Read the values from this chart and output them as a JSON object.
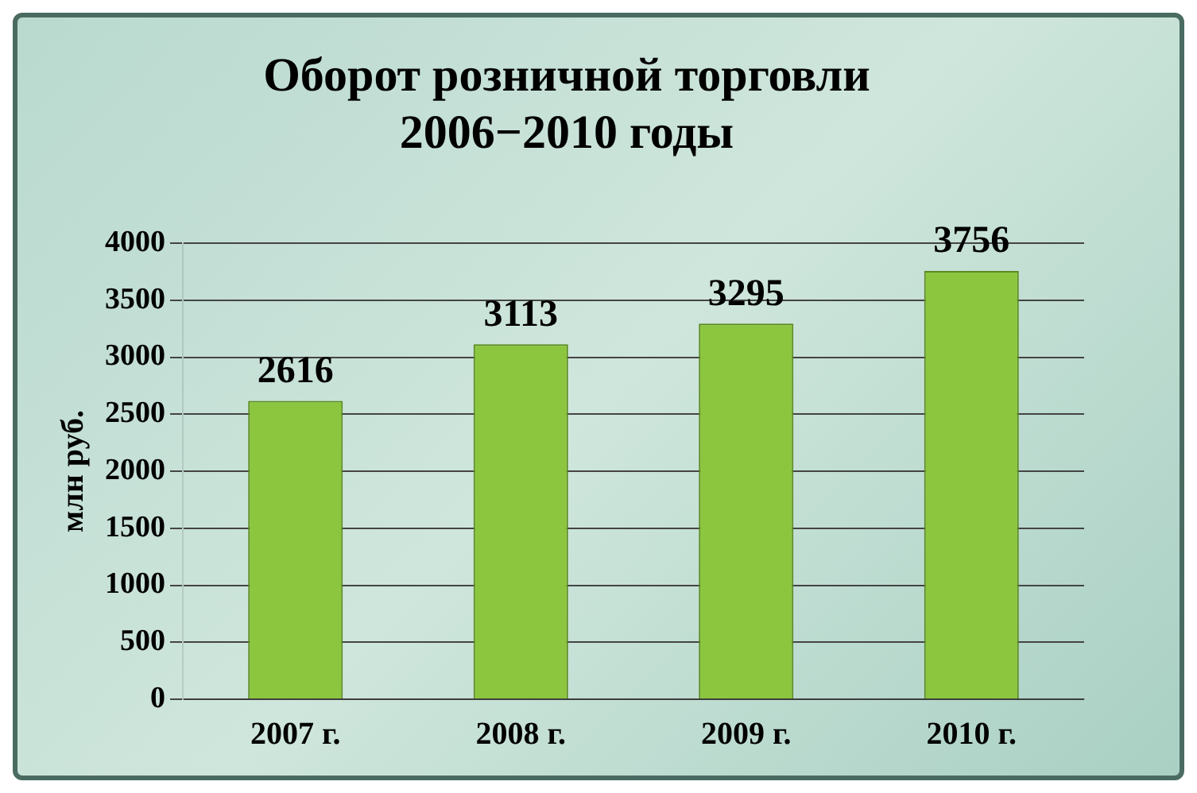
{
  "chart_data": {
    "type": "bar",
    "title": "Оборот розничной торговли\n2006−2010 годы",
    "ylabel": "млн руб.",
    "categories": [
      "2007 г.",
      "2008 г.",
      "2009 г.",
      "2010 г."
    ],
    "values": [
      2616,
      3113,
      3295,
      3756
    ],
    "color": "#8cc63f",
    "ylim": [
      0,
      4000
    ],
    "yticks": [
      0,
      500,
      1000,
      1500,
      2000,
      2500,
      3000,
      3500,
      4000
    ],
    "grid": "y",
    "data_labels": true,
    "legend": false
  }
}
